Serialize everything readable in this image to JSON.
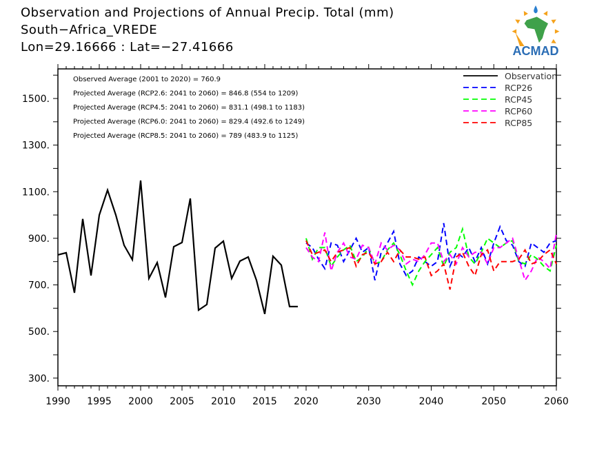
{
  "chart_data": {
    "type": "line",
    "title_lines": [
      "Observation and Projections of Annual Precip. Total (mm)",
      "South−Africa_VREDE",
      "Lon=29.16666 : Lat=−27.41666"
    ],
    "xlabel": "",
    "ylabel": "",
    "ylim": [
      267,
      1627
    ],
    "xlim": [
      1990,
      2060
    ],
    "yticks": [
      "300.",
      "500.",
      "700.",
      "900.",
      "1100.",
      "1300.",
      "1500."
    ],
    "ytick_values": [
      300,
      500,
      700,
      900,
      1100,
      1300,
      1500
    ],
    "xticks": [
      "1990",
      "1995",
      "2000",
      "2005",
      "2010",
      "2015",
      "2020",
      "2030",
      "2040",
      "2050",
      "2060"
    ],
    "xtick_values": [
      1990,
      1995,
      2000,
      2005,
      2010,
      2015,
      2020,
      2030,
      2040,
      2050,
      2060
    ],
    "grid": false,
    "legend_placement": "top-right",
    "annotations": [
      "Observed Average (2001 to 2020) = 760.9",
      "Projected Average (RCP2.6: 2041 to 2060) = 846.8 (554 to 1209)",
      "Projected Average (RCP4.5: 2041 to 2060) = 831.1 (498.1 to 1183)",
      "Projected Average (RCP6.0: 2041 to 2060) = 829.4 (492.6 to 1249)",
      "Projected Average (RCP8.5: 2041 to 2060) = 789 (483.9 to 1125)"
    ],
    "series": [
      {
        "name": "Observation",
        "color": "#000000",
        "dash": false,
        "x_start": 1990,
        "values": [
          829,
          838,
          666,
          983,
          740,
          1000,
          1107,
          1000,
          870,
          808,
          1148,
          728,
          796,
          646,
          864,
          882,
          1071,
          592,
          616,
          858,
          888,
          728,
          802,
          820,
          720,
          575,
          823,
          785,
          607,
          607
        ]
      },
      {
        "name": "RCP26",
        "color": "#0000ff",
        "dash": true,
        "x_start": 2020,
        "values": [
          880,
          860,
          810,
          770,
          880,
          870,
          800,
          850,
          900,
          840,
          860,
          720,
          840,
          880,
          930,
          790,
          740,
          760,
          820,
          800,
          780,
          800,
          965,
          780,
          840,
          820,
          860,
          800,
          860,
          790,
          880,
          950,
          890,
          870,
          800,
          780,
          880,
          860,
          840,
          880,
          890
        ]
      },
      {
        "name": "RCP45",
        "color": "#00ff00",
        "dash": true,
        "x_start": 2020,
        "values": [
          900,
          810,
          860,
          860,
          780,
          820,
          850,
          870,
          800,
          820,
          860,
          790,
          800,
          850,
          880,
          830,
          760,
          700,
          760,
          800,
          830,
          860,
          780,
          840,
          860,
          940,
          820,
          790,
          840,
          900,
          880,
          860,
          880,
          890,
          800,
          790,
          830,
          810,
          780,
          760,
          870
        ]
      },
      {
        "name": "RCP60",
        "color": "#ff00ff",
        "dash": true,
        "x_start": 2020,
        "values": [
          860,
          820,
          800,
          925,
          760,
          840,
          880,
          820,
          810,
          870,
          860,
          790,
          880,
          850,
          870,
          850,
          790,
          810,
          800,
          830,
          880,
          880,
          800,
          830,
          790,
          860,
          820,
          840,
          840,
          790,
          860,
          860,
          880,
          900,
          810,
          720,
          760,
          820,
          800,
          770,
          920
        ]
      },
      {
        "name": "RCP85",
        "color": "#ff0000",
        "dash": true,
        "x_start": 2020,
        "values": [
          890,
          830,
          840,
          850,
          800,
          840,
          850,
          860,
          780,
          830,
          840,
          790,
          800,
          840,
          800,
          850,
          820,
          820,
          810,
          820,
          740,
          760,
          790,
          680,
          820,
          840,
          780,
          740,
          830,
          850,
          760,
          800,
          800,
          800,
          810,
          850,
          790,
          800,
          830,
          850,
          790
        ]
      }
    ]
  },
  "logo": {
    "text": "ACMAD"
  }
}
